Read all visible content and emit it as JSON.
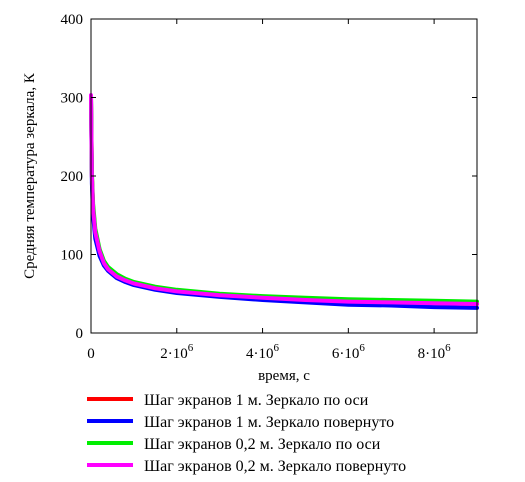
{
  "chart_data": {
    "type": "line",
    "xlabel": "время, с",
    "ylabel": "Средняя температура зеркала, К",
    "xlim": [
      0,
      9000000
    ],
    "ylim": [
      0,
      400
    ],
    "grid": false,
    "legend_position": "bottom",
    "y_ticks": [
      {
        "value": 0,
        "label": "0"
      },
      {
        "value": 100,
        "label": "100"
      },
      {
        "value": 200,
        "label": "200"
      },
      {
        "value": 300,
        "label": "300"
      },
      {
        "value": 400,
        "label": "400"
      }
    ],
    "x_ticks": [
      {
        "value": 0,
        "base": "0",
        "exp": ""
      },
      {
        "value": 2000000,
        "base": "2·10",
        "exp": "6"
      },
      {
        "value": 4000000,
        "base": "4·10",
        "exp": "6"
      },
      {
        "value": 6000000,
        "base": "6·10",
        "exp": "6"
      },
      {
        "value": 8000000,
        "base": "8·10",
        "exp": "6"
      }
    ],
    "series": [
      {
        "name": "Шаг экранов 1 м. Зеркало по оси",
        "color": "#ff0000",
        "x": [
          0,
          20000,
          50000,
          100000,
          200000,
          300000,
          400000,
          600000,
          800000,
          1000000,
          1500000,
          2000000,
          3000000,
          4000000,
          5000000,
          6000000,
          7000000,
          8000000,
          9000000
        ],
        "y": [
          300,
          200,
          160,
          130,
          105,
          90,
          82,
          73,
          67,
          63,
          57,
          53,
          48,
          45,
          42,
          40,
          39,
          38,
          37
        ]
      },
      {
        "name": "Шаг экранов 1 м. Зеркало повернуто",
        "color": "#0000ff",
        "x": [
          0,
          20000,
          50000,
          100000,
          200000,
          300000,
          400000,
          600000,
          800000,
          1000000,
          1500000,
          2000000,
          3000000,
          4000000,
          5000000,
          6000000,
          7000000,
          8000000,
          9000000
        ],
        "y": [
          300,
          190,
          150,
          120,
          98,
          86,
          79,
          70,
          65,
          61,
          55,
          51,
          46,
          42,
          39,
          36,
          35,
          33,
          32
        ]
      },
      {
        "name": "Шаг экранов 0,2 м. Зеркало по оси",
        "color": "#00ee00",
        "x": [
          0,
          20000,
          50000,
          100000,
          200000,
          300000,
          400000,
          600000,
          800000,
          1000000,
          1500000,
          2000000,
          3000000,
          4000000,
          5000000,
          6000000,
          7000000,
          8000000,
          9000000
        ],
        "y": [
          300,
          205,
          165,
          133,
          107,
          92,
          84,
          75,
          69,
          65,
          59,
          55,
          50,
          47,
          45,
          43,
          42,
          41,
          40
        ]
      },
      {
        "name": "Шаг экранов 0,2 м. Зеркало повернуто",
        "color": "#ff00ff",
        "x": [
          0,
          20000,
          50000,
          100000,
          200000,
          300000,
          400000,
          600000,
          800000,
          1000000,
          1500000,
          2000000,
          3000000,
          4000000,
          5000000,
          6000000,
          7000000,
          8000000,
          9000000
        ],
        "y": [
          303,
          200,
          158,
          128,
          104,
          89,
          81,
          72,
          67,
          63,
          57,
          53,
          48,
          45,
          42,
          40,
          39,
          38,
          37
        ]
      }
    ]
  }
}
